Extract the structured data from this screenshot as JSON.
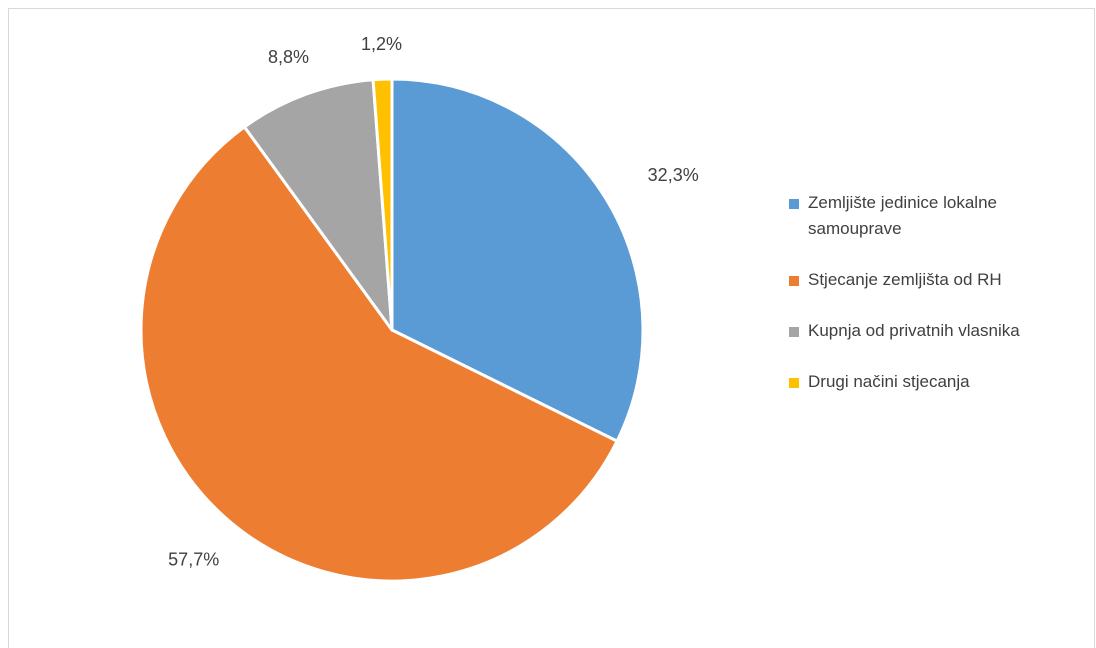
{
  "chart_data": {
    "type": "pie",
    "title": "",
    "start_angle_deg": 0,
    "direction": "clockwise",
    "legend_position": "right",
    "slices": [
      {
        "label": "Zemljište jedinice lokalne samouprave",
        "label_lines": [
          "Zemljište jedinice lokalne",
          "samouprave"
        ],
        "value": 32.3,
        "display": "32,3%",
        "color": "#5b9bd5"
      },
      {
        "label": "Stjecanje zemljišta od RH",
        "label_lines": [
          "Stjecanje zemljišta od RH"
        ],
        "value": 57.7,
        "display": "57,7%",
        "color": "#ed7d31"
      },
      {
        "label": "Kupnja od privatnih vlasnika",
        "label_lines": [
          "Kupnja od privatnih vlasnika"
        ],
        "value": 8.8,
        "display": "8,8%",
        "color": "#a5a5a5"
      },
      {
        "label": "Drugi načini stjecanja",
        "label_lines": [
          "Drugi načini stjecanja"
        ],
        "value": 1.2,
        "display": "1,2%",
        "color": "#ffc000"
      }
    ]
  }
}
